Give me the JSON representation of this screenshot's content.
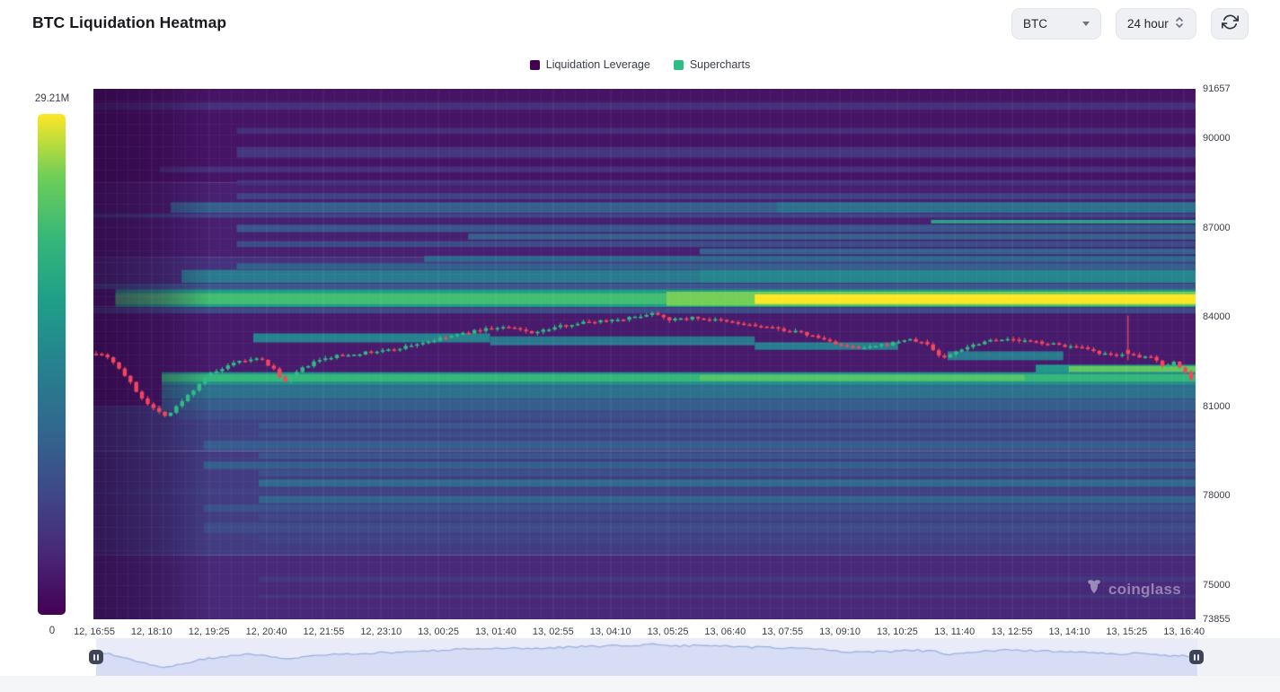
{
  "header": {
    "title": "BTC Liquidation Heatmap",
    "symbol_select": {
      "value": "BTC"
    },
    "period_select": {
      "value": "24 hour"
    }
  },
  "legend": {
    "items": [
      {
        "label": "Liquidation Leverage",
        "color": "#440154"
      },
      {
        "label": "Supercharts",
        "color": "#2ebd85"
      }
    ]
  },
  "watermark": {
    "text": "coinglass"
  },
  "chart_data": {
    "type": "heatmap",
    "title": "BTC Liquidation Heatmap",
    "legend": [
      "Liquidation Leverage",
      "Supercharts"
    ],
    "colorbar": {
      "max_label": "29.21M",
      "min_label": "0",
      "scale": "viridis"
    },
    "colormap_stops": [
      [
        0,
        "#440154"
      ],
      [
        0.125,
        "#482878"
      ],
      [
        0.25,
        "#3e4a89"
      ],
      [
        0.375,
        "#31688e"
      ],
      [
        0.5,
        "#26828e"
      ],
      [
        0.625,
        "#1f9e89"
      ],
      [
        0.75,
        "#35b779"
      ],
      [
        0.875,
        "#6ece58"
      ],
      [
        1,
        "#fde725"
      ]
    ],
    "x_tick_labels": [
      "12, 16:55",
      "12, 18:10",
      "12, 19:25",
      "12, 20:40",
      "12, 21:55",
      "12, 23:10",
      "13, 00:25",
      "13, 01:40",
      "13, 02:55",
      "13, 04:10",
      "13, 05:25",
      "13, 06:40",
      "13, 07:55",
      "13, 09:10",
      "13, 10:25",
      "13, 11:40",
      "13, 12:55",
      "13, 14:10",
      "13, 15:25",
      "13, 16:40"
    ],
    "y_axis": {
      "min": 73855,
      "max": 91657,
      "labels": [
        91657,
        90000,
        87000,
        84000,
        81000,
        78000,
        75000,
        73855
      ]
    },
    "heat_slabs": [
      [
        91657,
        88500,
        0.06
      ],
      [
        88500,
        86000,
        0.1
      ],
      [
        86000,
        84950,
        0.16
      ],
      [
        84950,
        84350,
        0.1
      ],
      [
        84350,
        81000,
        0.08
      ],
      [
        81000,
        79500,
        0.22
      ],
      [
        79500,
        76000,
        0.2
      ],
      [
        76000,
        73855,
        0.13
      ]
    ],
    "heat_bands": [
      [
        91200,
        90950,
        0.0,
        1,
        0.15
      ],
      [
        90350,
        90150,
        0.13,
        1,
        0.15
      ],
      [
        89700,
        89350,
        0.13,
        1,
        0.18
      ],
      [
        89050,
        88850,
        0.06,
        1,
        0.15
      ],
      [
        88600,
        88420,
        0.13,
        1,
        0.16
      ],
      [
        88150,
        87950,
        0.13,
        1,
        0.22
      ],
      [
        87850,
        87500,
        0.07,
        1,
        0.34
      ],
      [
        87850,
        87500,
        0.62,
        1,
        0.42
      ],
      [
        87480,
        87330,
        0.0,
        1,
        0.22
      ],
      [
        87260,
        87140,
        0.76,
        1,
        0.66
      ],
      [
        87100,
        86850,
        0.13,
        1,
        0.3
      ],
      [
        86800,
        86600,
        0.34,
        1,
        0.34
      ],
      [
        86550,
        86350,
        0.13,
        1,
        0.26
      ],
      [
        86300,
        86100,
        0.55,
        1,
        0.34
      ],
      [
        86050,
        85850,
        0.3,
        1,
        0.38
      ],
      [
        85800,
        85600,
        0.13,
        1,
        0.34
      ],
      [
        85580,
        85150,
        0.08,
        1,
        0.46
      ],
      [
        85580,
        85150,
        0.55,
        1,
        0.52
      ],
      [
        85120,
        84950,
        0.0,
        1,
        0.3
      ],
      [
        84930,
        84330,
        0.02,
        1,
        0.62
      ],
      [
        84800,
        84430,
        0.02,
        1,
        0.78
      ],
      [
        84850,
        84380,
        0.52,
        1,
        0.88
      ],
      [
        84760,
        84440,
        0.6,
        1,
        1.0
      ],
      [
        84300,
        84120,
        0.0,
        1,
        0.26
      ],
      [
        83450,
        83150,
        0.145,
        0.36,
        0.5
      ],
      [
        83350,
        83050,
        0.36,
        0.6,
        0.45
      ],
      [
        83150,
        82900,
        0.6,
        0.73,
        0.48
      ],
      [
        82850,
        82550,
        0.775,
        0.88,
        0.46
      ],
      [
        82400,
        82050,
        0.855,
        1,
        0.6
      ],
      [
        82350,
        82150,
        0.885,
        1,
        0.85
      ],
      [
        82150,
        81700,
        0.062,
        1,
        0.55
      ],
      [
        82080,
        81830,
        0.062,
        1,
        0.75
      ],
      [
        82060,
        81860,
        0.55,
        0.845,
        0.82
      ],
      [
        81700,
        81250,
        0.062,
        1,
        0.42
      ],
      [
        81250,
        80850,
        0.062,
        1,
        0.33
      ],
      [
        80800,
        80550,
        0.075,
        1,
        0.27
      ],
      [
        80450,
        80250,
        0.15,
        1,
        0.3
      ],
      [
        80150,
        79950,
        0.15,
        1,
        0.26
      ],
      [
        79850,
        79550,
        0.1,
        1,
        0.33
      ],
      [
        79450,
        79250,
        0.15,
        1,
        0.3
      ],
      [
        79150,
        78900,
        0.1,
        1,
        0.34
      ],
      [
        78850,
        78650,
        0.15,
        1,
        0.28
      ],
      [
        78550,
        78300,
        0.15,
        1,
        0.38
      ],
      [
        78250,
        78050,
        0.0,
        1,
        0.22
      ],
      [
        78000,
        77750,
        0.15,
        1,
        0.36
      ],
      [
        77700,
        77450,
        0.1,
        1,
        0.28
      ],
      [
        77400,
        77150,
        0.15,
        1,
        0.24
      ],
      [
        77100,
        76750,
        0.1,
        1,
        0.26
      ],
      [
        76700,
        76400,
        0.15,
        1,
        0.22
      ],
      [
        75300,
        75100,
        0.15,
        1,
        0.18
      ],
      [
        74700,
        74550,
        0.15,
        1,
        0.17
      ]
    ],
    "price_path": [
      [
        0.0,
        82800
      ],
      [
        0.012,
        82650
      ],
      [
        0.025,
        82100
      ],
      [
        0.04,
        81350
      ],
      [
        0.055,
        80850
      ],
      [
        0.065,
        80680
      ],
      [
        0.075,
        81050
      ],
      [
        0.09,
        81600
      ],
      [
        0.1,
        82000
      ],
      [
        0.115,
        82250
      ],
      [
        0.13,
        82500
      ],
      [
        0.15,
        82600
      ],
      [
        0.165,
        82150
      ],
      [
        0.172,
        81800
      ],
      [
        0.185,
        82200
      ],
      [
        0.2,
        82500
      ],
      [
        0.22,
        82700
      ],
      [
        0.245,
        82800
      ],
      [
        0.27,
        82900
      ],
      [
        0.3,
        83150
      ],
      [
        0.33,
        83400
      ],
      [
        0.355,
        83600
      ],
      [
        0.375,
        83650
      ],
      [
        0.4,
        83470
      ],
      [
        0.425,
        83700
      ],
      [
        0.445,
        83820
      ],
      [
        0.47,
        83900
      ],
      [
        0.49,
        83980
      ],
      [
        0.51,
        84150
      ],
      [
        0.525,
        83900
      ],
      [
        0.545,
        83980
      ],
      [
        0.565,
        83900
      ],
      [
        0.59,
        83760
      ],
      [
        0.615,
        83640
      ],
      [
        0.64,
        83500
      ],
      [
        0.66,
        83300
      ],
      [
        0.685,
        83000
      ],
      [
        0.7,
        82950
      ],
      [
        0.72,
        83060
      ],
      [
        0.74,
        83250
      ],
      [
        0.758,
        83120
      ],
      [
        0.773,
        82600
      ],
      [
        0.788,
        82900
      ],
      [
        0.8,
        83060
      ],
      [
        0.82,
        83270
      ],
      [
        0.84,
        83220
      ],
      [
        0.86,
        83150
      ],
      [
        0.88,
        83060
      ],
      [
        0.9,
        82950
      ],
      [
        0.917,
        82760
      ],
      [
        0.932,
        82700
      ],
      [
        0.942,
        82850
      ],
      [
        0.952,
        82600
      ],
      [
        0.962,
        82700
      ],
      [
        0.975,
        82350
      ],
      [
        0.985,
        82500
      ],
      [
        1.0,
        81950
      ]
    ],
    "candles": {
      "count": 192,
      "up_color": "#2ebd85",
      "down_color": "#f6465d"
    },
    "spike": {
      "frac": 0.943,
      "high": 84050,
      "low": 82550
    },
    "navigator": {
      "range_min": 80300,
      "range_max": 84400,
      "area_fill": "#d6ddf4",
      "line_color": "#9db1e4",
      "bg": "#e9ecf8"
    }
  }
}
